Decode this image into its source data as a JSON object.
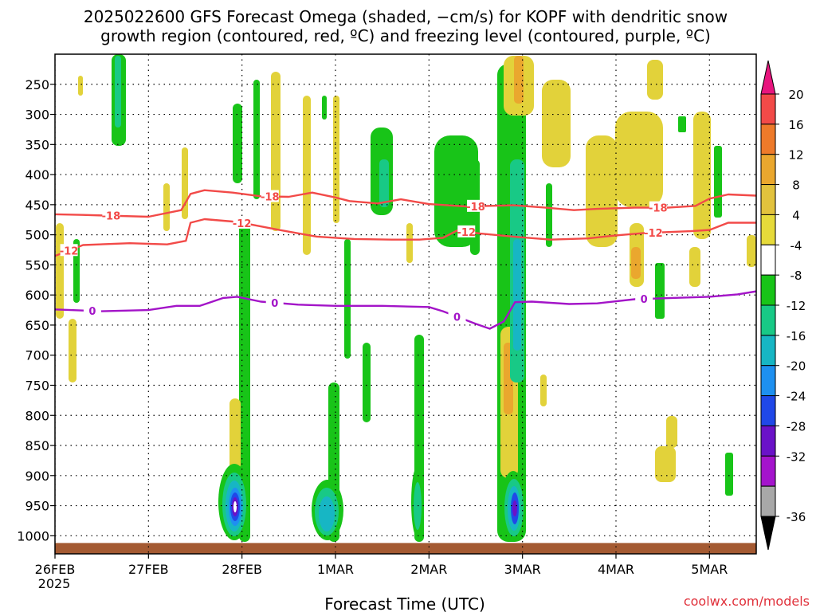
{
  "title_line1": "2025022600 GFS Forecast Omega (shaded, −cm/s) for KOPF with dendritic snow",
  "title_line2": "growth region (contoured, red, ºC) and freezing level (contoured, purple, ºC)",
  "xlabel": "Forecast Time (UTC)",
  "watermark": "coolwx.com/models",
  "chart_data": {
    "type": "heatmap",
    "title": "2025022600 GFS Forecast Omega (shaded, −cm/s) for KOPF with dendritic snow growth region (contoured, red, ºC) and freezing level (contoured, purple, ºC)",
    "xlabel": "Forecast Time (UTC)",
    "ylabel": "",
    "x_ticks": [
      "26FEB",
      "27FEB",
      "28FEB",
      "1MAR",
      "2MAR",
      "3MAR",
      "4MAR",
      "5MAR"
    ],
    "x_tick_sub": "2025",
    "x_range_days": [
      0,
      7.5
    ],
    "y_ticks": [
      250,
      300,
      350,
      400,
      450,
      500,
      550,
      600,
      650,
      700,
      750,
      800,
      850,
      900,
      950,
      1000
    ],
    "y_range_hpa": [
      200,
      1030
    ],
    "grid": true,
    "colorbar": {
      "labels": [
        20,
        16,
        12,
        8,
        4,
        -4,
        -8,
        -12,
        -16,
        -20,
        -24,
        -28,
        -32,
        -36
      ],
      "colors": [
        "#e8157e",
        "#f24a48",
        "#ee7a2a",
        "#eaa72e",
        "#e2c23d",
        "#e6da3a",
        "#ffffff",
        "#18c418",
        "#18c986",
        "#17b6c4",
        "#1e90f0",
        "#2048e8",
        "#6a12c8",
        "#a414cc",
        "#a8a8a8",
        "#000000"
      ]
    },
    "contours": [
      {
        "name": "-18",
        "color": "#f24a48",
        "label": "-18",
        "label_x": [
          0.6,
          2.3,
          4.5,
          6.45
        ],
        "points": [
          [
            0,
            466
          ],
          [
            0.3,
            467
          ],
          [
            1.0,
            470
          ],
          [
            1.35,
            459
          ],
          [
            1.45,
            432
          ],
          [
            1.6,
            426
          ],
          [
            1.9,
            430
          ],
          [
            2.2,
            436
          ],
          [
            2.5,
            437
          ],
          [
            2.75,
            430
          ],
          [
            3.0,
            438
          ],
          [
            3.15,
            444
          ],
          [
            3.45,
            448
          ],
          [
            3.7,
            441
          ],
          [
            4.0,
            449
          ],
          [
            4.4,
            453
          ],
          [
            4.9,
            451
          ],
          [
            5.25,
            455
          ],
          [
            5.55,
            459
          ],
          [
            5.8,
            457
          ],
          [
            6.2,
            455
          ],
          [
            6.55,
            455
          ],
          [
            6.85,
            452
          ],
          [
            7.0,
            440
          ],
          [
            7.2,
            433
          ],
          [
            7.5,
            435
          ]
        ]
      },
      {
        "name": "-12",
        "color": "#f24a48",
        "label": "-12",
        "label_x": [
          0.15,
          2.0,
          4.4,
          6.4
        ],
        "points": [
          [
            0,
            535
          ],
          [
            0.3,
            517
          ],
          [
            0.8,
            514
          ],
          [
            1.2,
            516
          ],
          [
            1.4,
            510
          ],
          [
            1.45,
            480
          ],
          [
            1.6,
            474
          ],
          [
            1.9,
            478
          ],
          [
            2.1,
            483
          ],
          [
            2.4,
            492
          ],
          [
            2.8,
            503
          ],
          [
            3.2,
            507
          ],
          [
            3.6,
            508
          ],
          [
            3.9,
            508
          ],
          [
            4.15,
            505
          ],
          [
            4.3,
            493
          ],
          [
            4.55,
            498
          ],
          [
            4.9,
            503
          ],
          [
            5.3,
            508
          ],
          [
            5.7,
            506
          ],
          [
            6.0,
            501
          ],
          [
            6.3,
            497
          ],
          [
            6.8,
            494
          ],
          [
            7.0,
            492
          ],
          [
            7.2,
            480
          ],
          [
            7.5,
            480
          ]
        ]
      },
      {
        "name": "0",
        "color": "#a314c8",
        "label": "0",
        "label_x": [
          0.4,
          2.35,
          4.3,
          6.3
        ],
        "points": [
          [
            0,
            624
          ],
          [
            0.5,
            627
          ],
          [
            1.0,
            625
          ],
          [
            1.3,
            618
          ],
          [
            1.55,
            618
          ],
          [
            1.8,
            605
          ],
          [
            1.95,
            603
          ],
          [
            2.2,
            611
          ],
          [
            2.6,
            616
          ],
          [
            3.0,
            618
          ],
          [
            3.5,
            618
          ],
          [
            4.0,
            620
          ],
          [
            4.15,
            627
          ],
          [
            4.5,
            648
          ],
          [
            4.65,
            656
          ],
          [
            4.8,
            644
          ],
          [
            4.92,
            612
          ],
          [
            5.1,
            611
          ],
          [
            5.5,
            615
          ],
          [
            5.8,
            614
          ],
          [
            6.2,
            607
          ],
          [
            6.6,
            605
          ],
          [
            7.0,
            603
          ],
          [
            7.3,
            599
          ],
          [
            7.5,
            594
          ]
        ]
      }
    ],
    "ground_pressure_hpa": 1012
  }
}
